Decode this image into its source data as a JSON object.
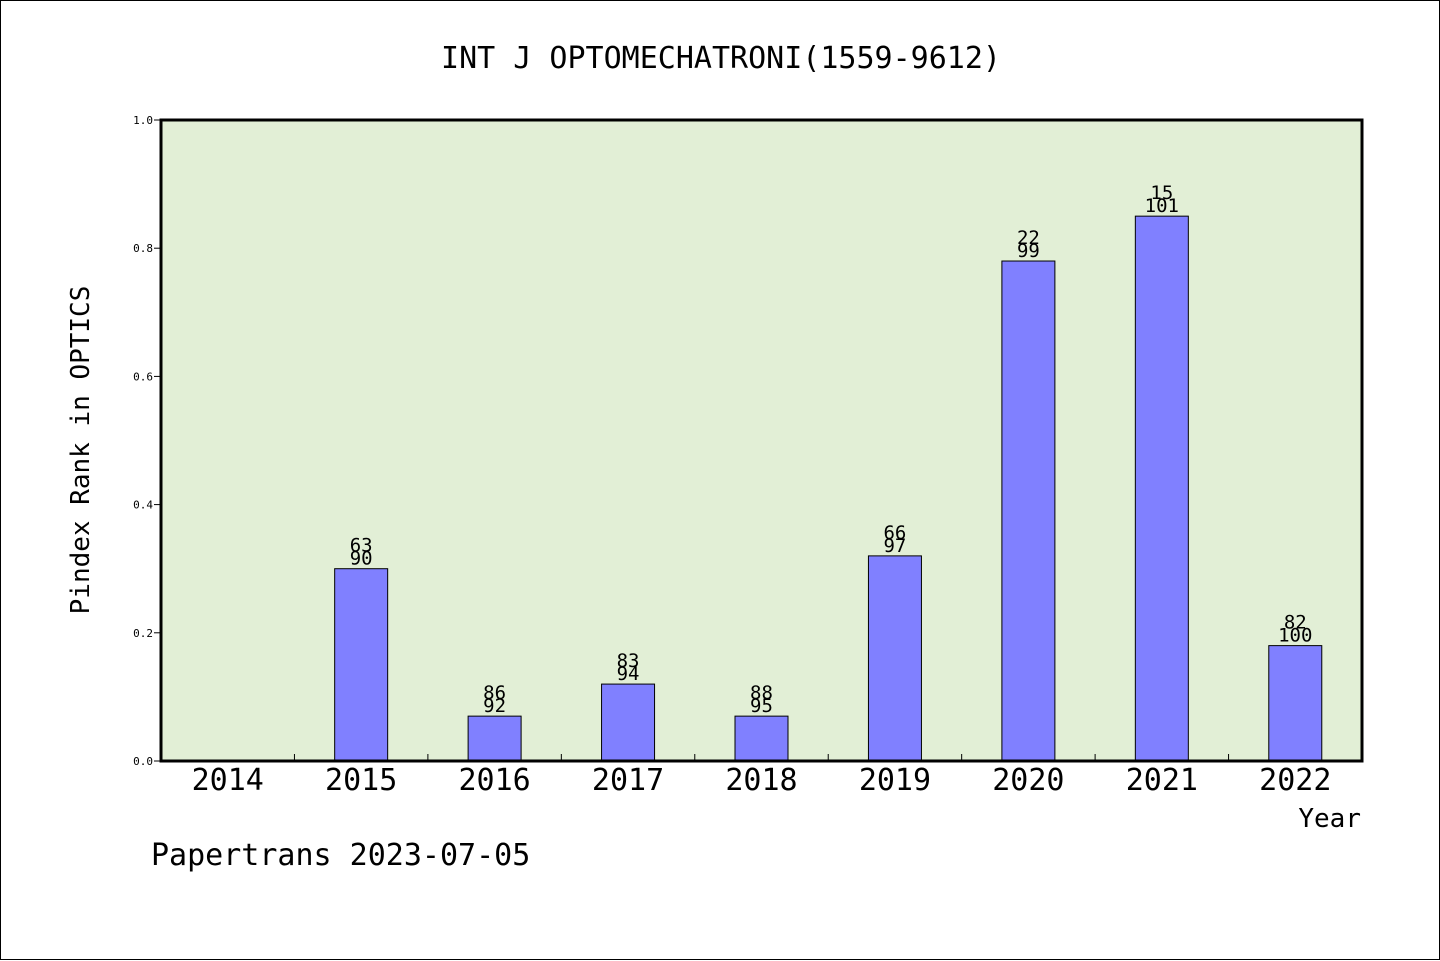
{
  "chart_data": {
    "type": "bar",
    "title": "INT J OPTOMECHATRONI(1559-9612)",
    "xlabel": "Year",
    "ylabel": "Pindex Rank in OPTICS",
    "categories": [
      "2014",
      "2015",
      "2016",
      "2017",
      "2018",
      "2019",
      "2020",
      "2021",
      "2022"
    ],
    "values": [
      0,
      0.3,
      0.07,
      0.12,
      0.07,
      0.32,
      0.78,
      0.85,
      0.18
    ],
    "rank_labels": [
      "",
      "63",
      "86",
      "83",
      "88",
      "66",
      "22",
      "15",
      "82"
    ],
    "total_labels": [
      "",
      "90",
      "92",
      "94",
      "95",
      "97",
      "99",
      "101",
      "100"
    ],
    "ylim": [
      0,
      1.0
    ],
    "yticks": [
      "0.0",
      "0.2",
      "0.4",
      "0.6",
      "0.8",
      "1.0"
    ],
    "grid": false,
    "colors": {
      "plot_background": "#e2efd6",
      "bar_fill": "#8080ff",
      "bar_stroke": "#000000"
    }
  },
  "footer": {
    "credit": "Papertrans 2023-07-05"
  }
}
